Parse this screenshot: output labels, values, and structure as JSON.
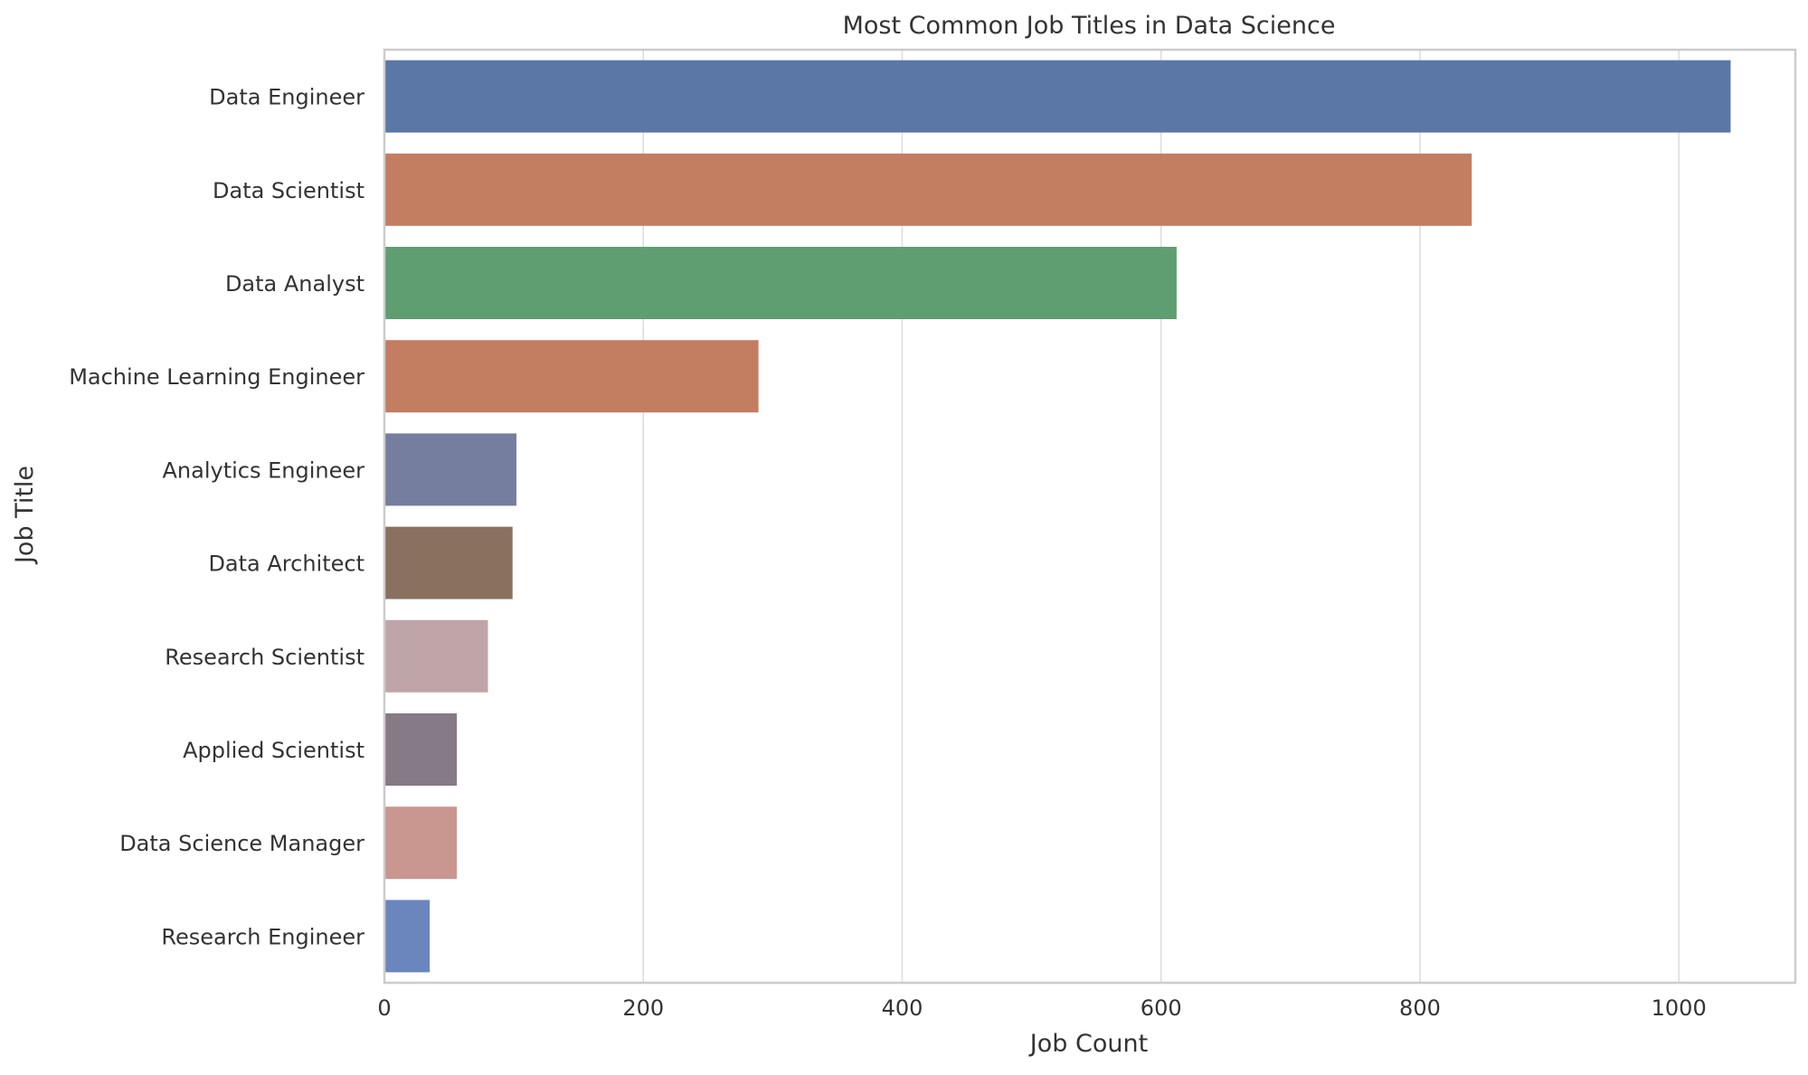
{
  "chart_data": {
    "type": "bar",
    "orientation": "horizontal",
    "title": "Most Common Job Titles in Data Science",
    "xlabel": "Job Count",
    "ylabel": "Job Title",
    "xlim": [
      0,
      1090
    ],
    "xticks": [
      0,
      200,
      400,
      600,
      800,
      1000
    ],
    "grid": "vertical",
    "categories": [
      "Data Engineer",
      "Data Scientist",
      "Data Analyst",
      "Machine Learning Engineer",
      "Analytics Engineer",
      "Data Architect",
      "Research Scientist",
      "Applied Scientist",
      "Data Science Manager",
      "Research Engineer"
    ],
    "values": [
      1040,
      840,
      612,
      289,
      102,
      99,
      80,
      56,
      56,
      35
    ],
    "colors": [
      "#5a77a6",
      "#c37d61",
      "#5e9e70",
      "#c37d61",
      "#757e9f",
      "#8a705e",
      "#c0a5a8",
      "#867a86",
      "#c99690",
      "#6b86bd"
    ]
  }
}
